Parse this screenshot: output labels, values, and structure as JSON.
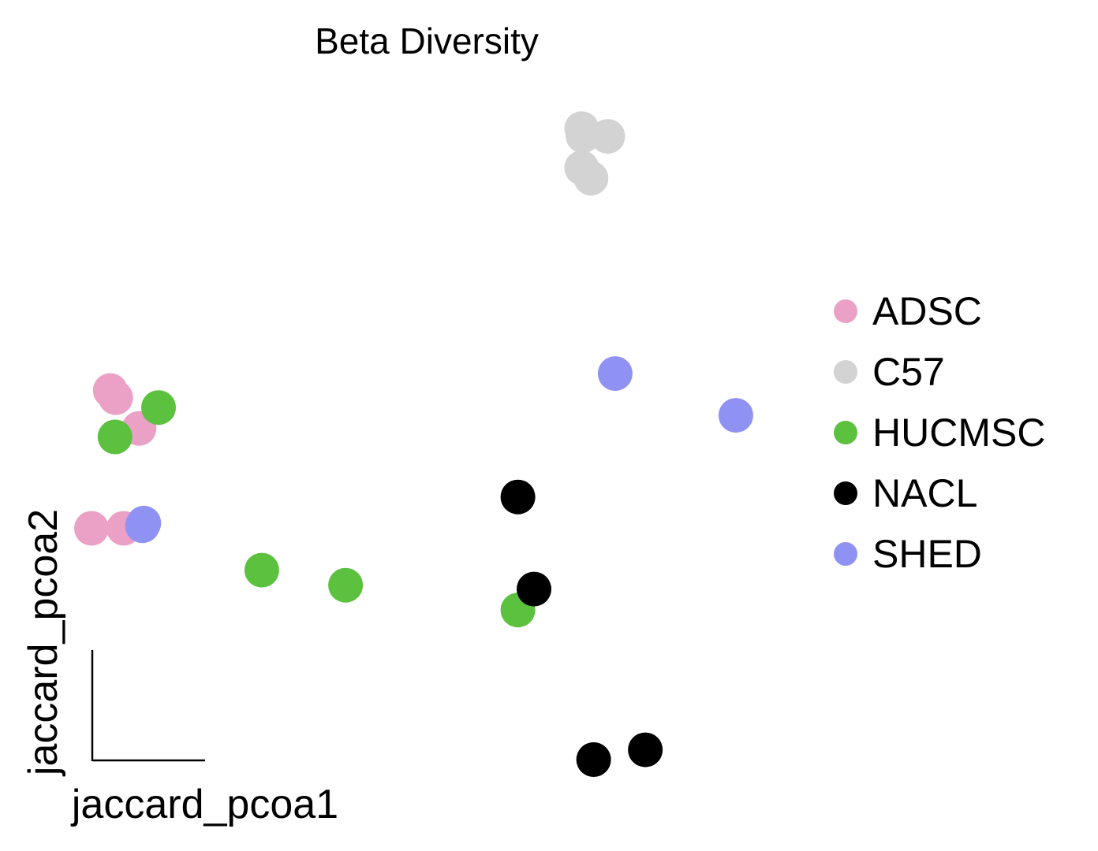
{
  "chart_data": {
    "type": "scatter",
    "title": "Beta Diversity",
    "xlabel": "jaccard_pcoa1",
    "ylabel": "jaccard_pcoa2",
    "xlim": [
      0,
      1
    ],
    "ylim": [
      0,
      1
    ],
    "grid": false,
    "legend_position": "right",
    "series": [
      {
        "name": "ADSC",
        "color": "#EBA0C6",
        "points": [
          {
            "x": 0.028,
            "y": 0.565
          },
          {
            "x": 0.036,
            "y": 0.554
          },
          {
            "x": 0.071,
            "y": 0.507
          },
          {
            "x": 0.0,
            "y": 0.354
          },
          {
            "x": 0.048,
            "y": 0.354
          }
        ]
      },
      {
        "name": "C57",
        "color": "#D3D3D3",
        "points": [
          {
            "x": 0.731,
            "y": 0.966
          },
          {
            "x": 0.733,
            "y": 0.955
          },
          {
            "x": 0.77,
            "y": 0.954
          },
          {
            "x": 0.731,
            "y": 0.906
          },
          {
            "x": 0.745,
            "y": 0.89
          }
        ]
      },
      {
        "name": "HUCMSC",
        "color": "#5BC13E",
        "points": [
          {
            "x": 0.1,
            "y": 0.539
          },
          {
            "x": 0.035,
            "y": 0.494
          },
          {
            "x": 0.254,
            "y": 0.29
          },
          {
            "x": 0.379,
            "y": 0.267
          },
          {
            "x": 0.636,
            "y": 0.229
          }
        ]
      },
      {
        "name": "NACL",
        "color": "#000000",
        "points": [
          {
            "x": 0.636,
            "y": 0.402
          },
          {
            "x": 0.66,
            "y": 0.261
          },
          {
            "x": 0.826,
            "y": 0.015
          },
          {
            "x": 0.749,
            "y": 0.0
          }
        ]
      },
      {
        "name": "SHED",
        "color": "#8F92F3",
        "points": [
          {
            "x": 0.781,
            "y": 0.591
          },
          {
            "x": 0.961,
            "y": 0.527
          },
          {
            "x": 0.078,
            "y": 0.362
          },
          {
            "x": 0.076,
            "y": 0.358
          }
        ]
      }
    ]
  }
}
